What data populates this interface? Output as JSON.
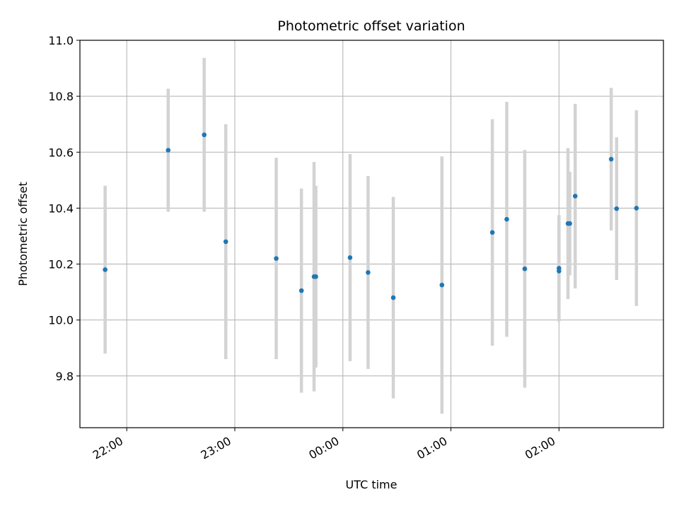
{
  "chart_data": {
    "type": "scatter",
    "title": "Photometric offset variation",
    "xlabel": "UTC time",
    "ylabel": "Photometric offset",
    "xlim": [
      "2023-01-01T21:34",
      "2023-01-02T02:58"
    ],
    "ylim": [
      9.615,
      11.0
    ],
    "xticks": [
      {
        "t": "2023-01-01T22:00",
        "label": "22:00"
      },
      {
        "t": "2023-01-01T23:00",
        "label": "23:00"
      },
      {
        "t": "2023-01-02T00:00",
        "label": "00:00"
      },
      {
        "t": "2023-01-02T01:00",
        "label": "01:00"
      },
      {
        "t": "2023-01-02T02:00",
        "label": "02:00"
      }
    ],
    "yticks": [
      {
        "v": 9.8,
        "label": "9.8"
      },
      {
        "v": 10.0,
        "label": "10.0"
      },
      {
        "v": 10.2,
        "label": "10.2"
      },
      {
        "v": 10.4,
        "label": "10.4"
      },
      {
        "v": 10.6,
        "label": "10.6"
      },
      {
        "v": 10.8,
        "label": "10.8"
      },
      {
        "v": 11.0,
        "label": "11.0"
      }
    ],
    "grid": true,
    "point_color": "#1f77b4",
    "errorbar_color": "#d3d3d3",
    "points": [
      {
        "t": "2023-01-01T21:48",
        "y": 10.18,
        "err": 0.3
      },
      {
        "t": "2023-01-01T22:23",
        "y": 10.607,
        "err": 0.22
      },
      {
        "t": "2023-01-01T22:43",
        "y": 10.662,
        "err": 0.275
      },
      {
        "t": "2023-01-01T22:55",
        "y": 10.28,
        "err": 0.42
      },
      {
        "t": "2023-01-01T23:23",
        "y": 10.22,
        "err": 0.36
      },
      {
        "t": "2023-01-01T23:37",
        "y": 10.105,
        "err": 0.365
      },
      {
        "t": "2023-01-01T23:44",
        "y": 10.155,
        "err": 0.41
      },
      {
        "t": "2023-01-01T23:45",
        "y": 10.155,
        "err": 0.325
      },
      {
        "t": "2023-01-02T00:04",
        "y": 10.223,
        "err": 0.37
      },
      {
        "t": "2023-01-02T00:14",
        "y": 10.17,
        "err": 0.345
      },
      {
        "t": "2023-01-02T00:28",
        "y": 10.08,
        "err": 0.36
      },
      {
        "t": "2023-01-02T00:55",
        "y": 10.125,
        "err": 0.46
      },
      {
        "t": "2023-01-02T01:23",
        "y": 10.313,
        "err": 0.405
      },
      {
        "t": "2023-01-02T01:31",
        "y": 10.36,
        "err": 0.42
      },
      {
        "t": "2023-01-02T01:41",
        "y": 10.183,
        "err": 0.425
      },
      {
        "t": "2023-01-02T02:00",
        "y": 10.175,
        "err": 0.175
      },
      {
        "t": "2023-01-02T02:00",
        "y": 10.185,
        "err": 0.19
      },
      {
        "t": "2023-01-02T02:05",
        "y": 10.345,
        "err": 0.27
      },
      {
        "t": "2023-01-02T02:06",
        "y": 10.345,
        "err": 0.185
      },
      {
        "t": "2023-01-02T02:09",
        "y": 10.443,
        "err": 0.33
      },
      {
        "t": "2023-01-02T02:29",
        "y": 10.575,
        "err": 0.255
      },
      {
        "t": "2023-01-02T02:32",
        "y": 10.398,
        "err": 0.255
      },
      {
        "t": "2023-01-02T02:43",
        "y": 10.4,
        "err": 0.35
      }
    ]
  }
}
